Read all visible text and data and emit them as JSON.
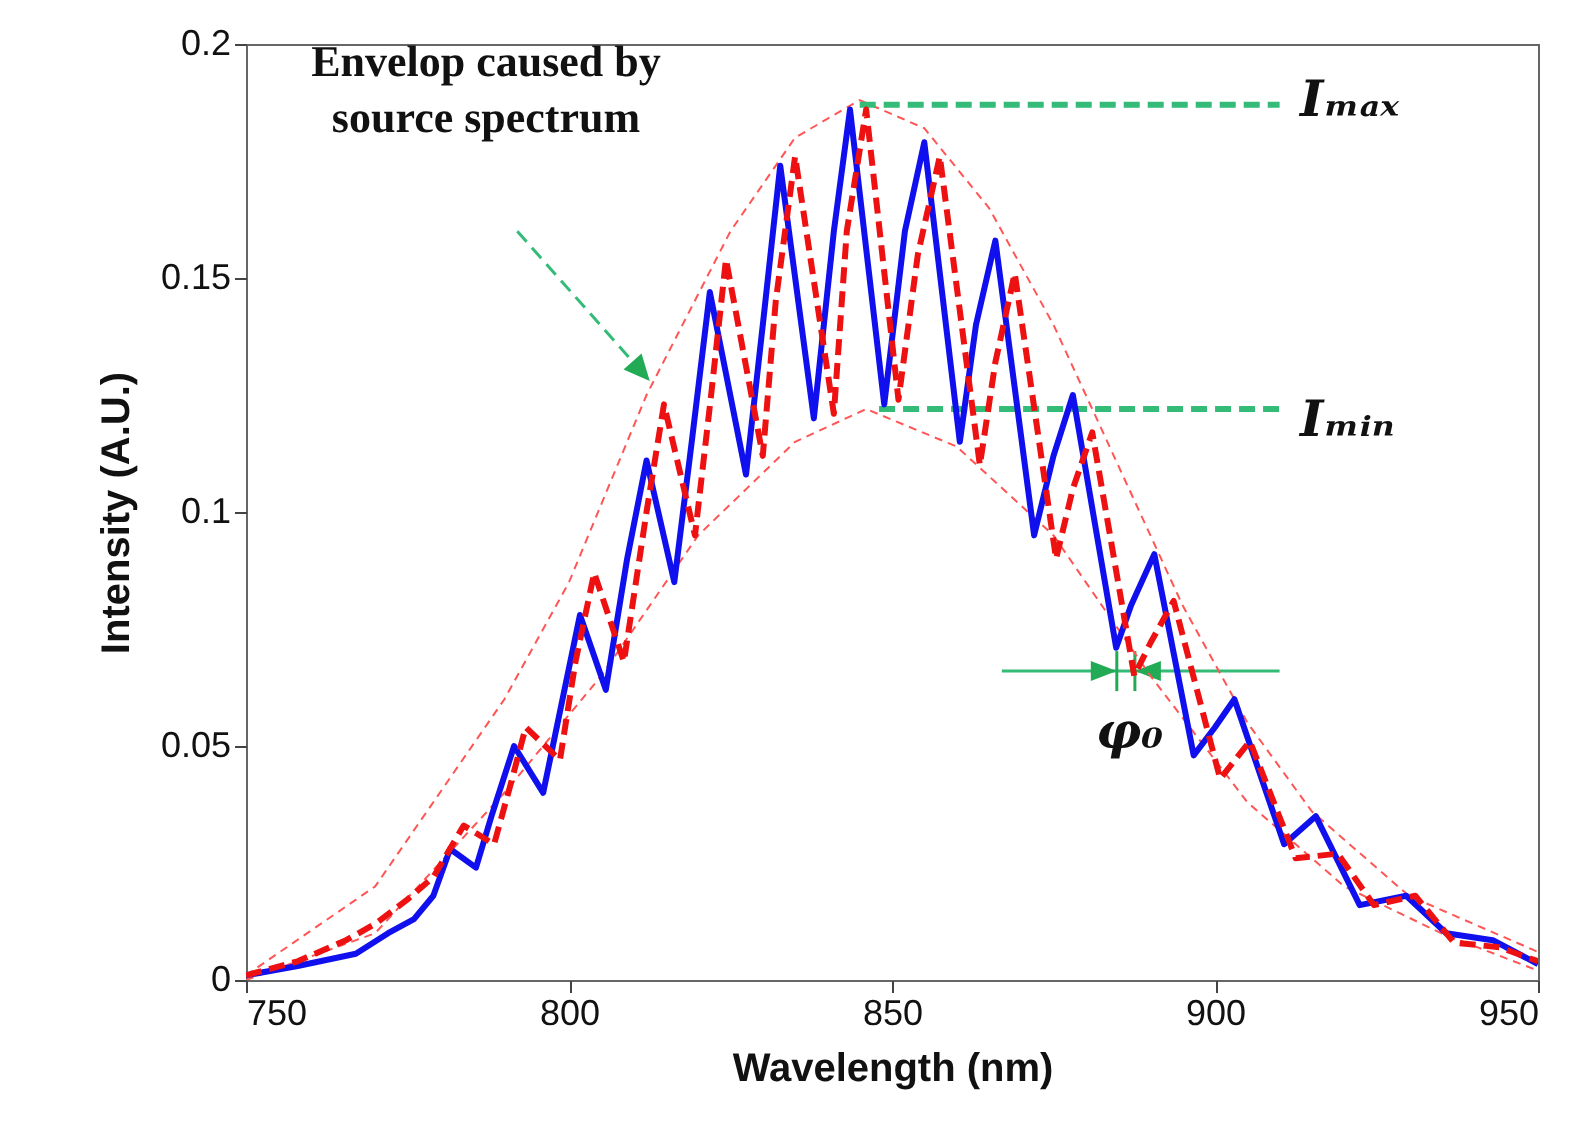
{
  "chart_data": {
    "type": "line",
    "xlabel": "Wavelength (nm)",
    "ylabel": "Intensity (A.U.)",
    "xlim": [
      750,
      950
    ],
    "xticks": [
      750,
      800,
      850,
      900,
      950
    ],
    "ylim": [
      0,
      0.2
    ],
    "yticks": [
      0,
      0.05,
      0.1,
      0.15,
      0.2
    ],
    "grid": false,
    "marker": "none",
    "annotations": [
      "Envelop caused by source spectrum",
      "Iₘₐₓ",
      "Iₘᵢₙ",
      "φ₀"
    ],
    "series": [
      {
        "color": "#ff5555",
        "line_style": "dotted",
        "x": [
          750,
          770,
          790,
          800,
          812,
          825,
          835,
          845,
          855,
          865,
          875,
          885,
          895,
          905,
          915,
          930,
          950
        ],
        "values": [
          0.001,
          0.02,
          0.06,
          0.085,
          0.125,
          0.16,
          0.18,
          0.188,
          0.182,
          0.165,
          0.14,
          0.11,
          0.08,
          0.055,
          0.036,
          0.018,
          0.006
        ]
      },
      {
        "color": "#ff5555",
        "line_style": "dotted",
        "x": [
          750,
          770,
          790,
          805,
          820,
          835,
          846,
          860,
          875,
          890,
          905,
          920,
          935,
          950
        ],
        "values": [
          0,
          0.01,
          0.04,
          0.065,
          0.095,
          0.115,
          0.122,
          0.114,
          0.095,
          0.065,
          0.038,
          0.02,
          0.01,
          0.002
        ]
      },
      {
        "color": "#33bb77",
        "line_style": "dashed",
        "x": [
          845,
          910
        ],
        "values": [
          0.187,
          0.187
        ]
      },
      {
        "color": "#33bb77",
        "line_style": "dashed",
        "x": [
          848,
          910
        ],
        "values": [
          0.122,
          0.122
        ]
      },
      {
        "color": "#1010ee",
        "line_style": "solid",
        "x": [
          750,
          758,
          767,
          772,
          776,
          779,
          781.6,
          785.6,
          788,
          791.5,
          796,
          799,
          801.7,
          805.7,
          809,
          812,
          816.3,
          819,
          821.8,
          827.4,
          830,
          832.7,
          837.9,
          841,
          843.5,
          848.8,
          852,
          855,
          860.5,
          863,
          866,
          872,
          875,
          878,
          884.7,
          887,
          890.6,
          896.7,
          900,
          903,
          910.7,
          915.6,
          922.4,
          929.6,
          935.8,
          943,
          950
        ],
        "values": [
          0.001,
          0.003,
          0.0056,
          0.01,
          0.013,
          0.018,
          0.028,
          0.024,
          0.035,
          0.05,
          0.04,
          0.06,
          0.078,
          0.062,
          0.09,
          0.111,
          0.085,
          0.115,
          0.147,
          0.108,
          0.14,
          0.174,
          0.12,
          0.16,
          0.186,
          0.123,
          0.16,
          0.179,
          0.115,
          0.14,
          0.158,
          0.095,
          0.112,
          0.125,
          0.071,
          0.08,
          0.091,
          0.048,
          0.054,
          0.06,
          0.029,
          0.035,
          0.016,
          0.018,
          0.01,
          0.0085,
          0.0034
        ]
      },
      {
        "color": "#ee1111",
        "line_style": "dashed",
        "x": [
          750,
          758,
          765.5,
          770,
          774.8,
          779,
          783.7,
          788.4,
          791,
          793.3,
          798.6,
          801,
          803.9,
          808.5,
          812,
          814.7,
          819.5,
          822,
          824.3,
          830,
          832,
          835,
          841,
          843,
          846,
          851,
          854,
          857.4,
          863.6,
          866,
          869,
          875.4,
          878,
          881,
          887.5,
          890,
          893.6,
          900.8,
          905.4,
          912.5,
          919,
          924.6,
          931,
          937,
          944,
          950
        ],
        "values": [
          0.001,
          0.004,
          0.0085,
          0.012,
          0.017,
          0.022,
          0.033,
          0.029,
          0.042,
          0.054,
          0.047,
          0.068,
          0.087,
          0.068,
          0.1,
          0.123,
          0.095,
          0.125,
          0.154,
          0.112,
          0.145,
          0.176,
          0.121,
          0.16,
          0.186,
          0.124,
          0.155,
          0.176,
          0.11,
          0.132,
          0.151,
          0.09,
          0.105,
          0.117,
          0.065,
          0.072,
          0.081,
          0.043,
          0.051,
          0.026,
          0.027,
          0.016,
          0.018,
          0.008,
          0.007,
          0.004
        ]
      }
    ]
  }
}
